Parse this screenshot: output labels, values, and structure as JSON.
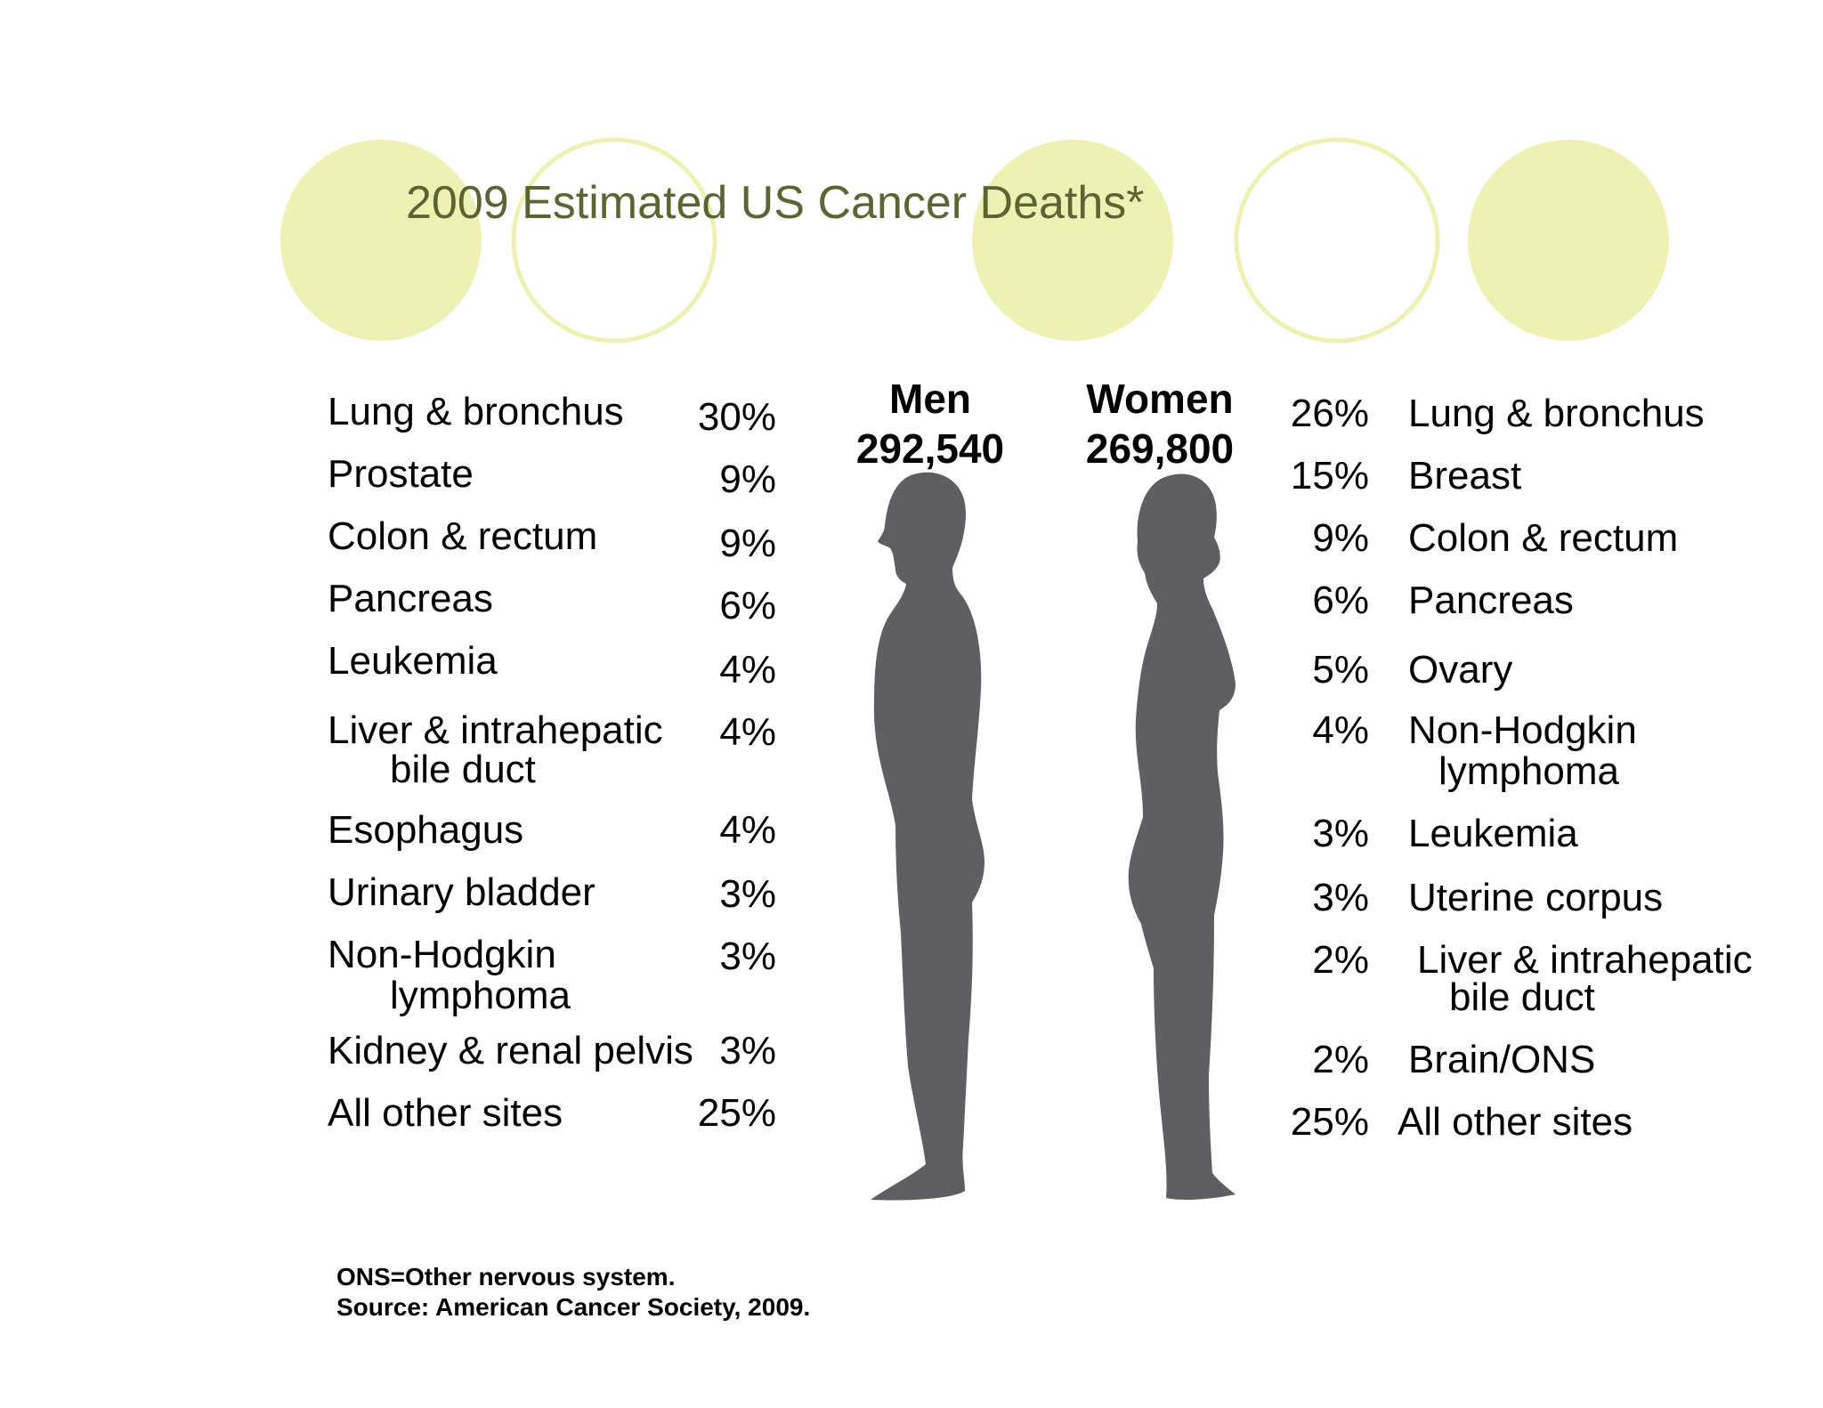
{
  "title": "2009 Estimated US Cancer Deaths*",
  "colors": {
    "circle": "#eef1b4",
    "title": "#5c6434",
    "silhouette": "#5f5e62"
  },
  "icons": {
    "men": "male-silhouette-icon",
    "women": "female-silhouette-icon"
  },
  "men": {
    "label": "Men",
    "total": "292,540",
    "rows": [
      {
        "site": "Lung & bronchus",
        "pct": "30%"
      },
      {
        "site": "Prostate",
        "pct": "9%"
      },
      {
        "site": "Colon & rectum",
        "pct": "9%"
      },
      {
        "site": "Pancreas",
        "pct": "6%"
      },
      {
        "site": "Leukemia",
        "pct": "4%"
      },
      {
        "site": "Liver & intrahepatic",
        "site_cont": "bile duct",
        "pct": "4%"
      },
      {
        "site": "Esophagus",
        "pct": "4%"
      },
      {
        "site": "Urinary bladder",
        "pct": "3%"
      },
      {
        "site": "Non-Hodgkin",
        "site_cont": "lymphoma",
        "pct": "3%"
      },
      {
        "site": "Kidney & renal pelvis",
        "pct": "3%"
      },
      {
        "site": "All other sites",
        "pct": "25%"
      }
    ]
  },
  "women": {
    "label": "Women",
    "total": "269,800",
    "rows": [
      {
        "site": "Lung & bronchus",
        "pct": "26%"
      },
      {
        "site": "Breast",
        "pct": "15%"
      },
      {
        "site": "Colon & rectum",
        "pct": "9%"
      },
      {
        "site": "Pancreas",
        "pct": "6%"
      },
      {
        "site": "Ovary",
        "pct": "5%"
      },
      {
        "site": "Non-Hodgkin",
        "site_cont": "lymphoma",
        "pct": "4%"
      },
      {
        "site": "Leukemia",
        "pct": "3%"
      },
      {
        "site": "Uterine corpus",
        "pct": "3%"
      },
      {
        "site": "Liver & intrahepatic",
        "site_cont": "bile duct",
        "pct": "2%"
      },
      {
        "site": "Brain/ONS",
        "pct": "2%"
      },
      {
        "site": "All other sites",
        "pct": "25%"
      }
    ]
  },
  "footnotes": {
    "line1": "ONS=Other nervous system.",
    "line2": "Source: American Cancer Society, 2009."
  }
}
